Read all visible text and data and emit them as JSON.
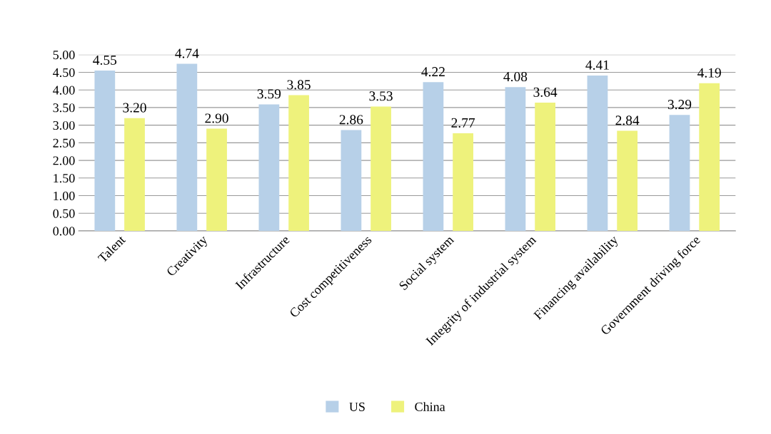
{
  "chart_data": {
    "type": "bar",
    "categories": [
      "Talent",
      "Creativity",
      "Infrastructure",
      "Cost competitiveness",
      "Social system",
      "Integrity of industrial system",
      "Financing availability",
      "Government driving force"
    ],
    "series": [
      {
        "name": "US",
        "color": "#b7d0e8",
        "values": [
          4.55,
          4.74,
          3.59,
          2.86,
          4.22,
          4.08,
          4.41,
          3.29
        ],
        "value_labels": [
          "4.55",
          "4.74",
          "3.59",
          "2.86",
          "4.22",
          "4.08",
          "4.41",
          "3.29"
        ]
      },
      {
        "name": "China",
        "color": "#eef27c",
        "values": [
          3.2,
          2.9,
          3.85,
          3.53,
          2.77,
          3.64,
          2.84,
          4.19
        ],
        "value_labels": [
          "3.20",
          "2.90",
          "3.85",
          "3.53",
          "2.77",
          "3.64",
          "2.84",
          "4.19"
        ]
      }
    ],
    "ylim": [
      0,
      5
    ],
    "yticks": [
      {
        "value": 0,
        "label": "0.00"
      },
      {
        "value": 0.5,
        "label": "0.50"
      },
      {
        "value": 1,
        "label": "1.00"
      },
      {
        "value": 1.5,
        "label": "1.50"
      },
      {
        "value": 2,
        "label": "2.00"
      },
      {
        "value": 2.5,
        "label": "2.50"
      },
      {
        "value": 3,
        "label": "3.00"
      },
      {
        "value": 3.5,
        "label": "3.50"
      },
      {
        "value": 4,
        "label": "4.00"
      },
      {
        "value": 4.5,
        "label": "4.50"
      },
      {
        "value": 5,
        "label": "5.00"
      }
    ],
    "grid": "y",
    "legend": "bottom"
  }
}
